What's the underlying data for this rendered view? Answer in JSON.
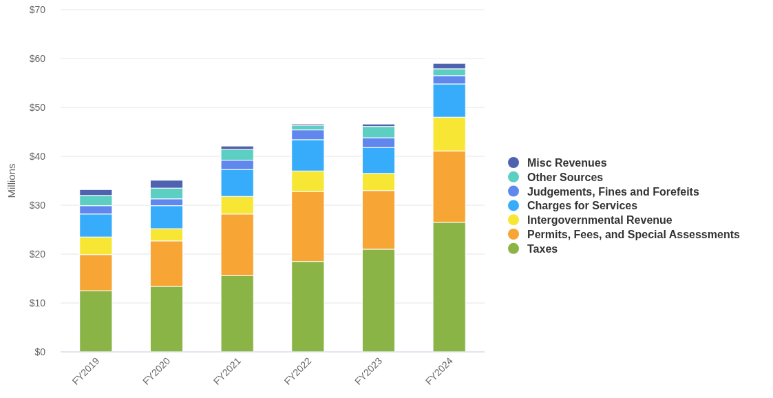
{
  "chart_data": {
    "type": "bar",
    "stacked": true,
    "ylabel": "Millions",
    "categories": [
      "FY2019",
      "FY2020",
      "FY2021",
      "FY2022",
      "FY2023",
      "FY2024"
    ],
    "series": [
      {
        "name": "Taxes",
        "color": "#8bb446",
        "values": [
          12.5,
          13.4,
          15.6,
          18.5,
          21.0,
          26.5
        ]
      },
      {
        "name": "Permits, Fees, and Special Assessments",
        "color": "#f7a534",
        "values": [
          7.4,
          9.3,
          12.6,
          14.3,
          12.0,
          14.6
        ]
      },
      {
        "name": "Intergovernmental Revenue",
        "color": "#f7e634",
        "values": [
          3.6,
          2.5,
          3.6,
          4.2,
          3.5,
          6.9
        ]
      },
      {
        "name": "Charges for Services",
        "color": "#36acfa",
        "values": [
          4.7,
          4.7,
          5.5,
          6.4,
          5.3,
          6.8
        ]
      },
      {
        "name": "Judgements, Fines and Forefeits",
        "color": "#5f87ee",
        "values": [
          1.7,
          1.4,
          1.9,
          2.0,
          2.0,
          1.7
        ]
      },
      {
        "name": "Other Sources",
        "color": "#5ccec2",
        "values": [
          2.1,
          2.2,
          2.2,
          0.9,
          2.3,
          1.4
        ]
      },
      {
        "name": "Misc Revenues",
        "color": "#4f62b0",
        "values": [
          1.2,
          1.6,
          0.7,
          0.3,
          0.5,
          1.1
        ]
      }
    ],
    "ylim": [
      0,
      70
    ],
    "yticks": [
      {
        "value": 0,
        "label": "$0"
      },
      {
        "value": 10,
        "label": "$10"
      },
      {
        "value": 20,
        "label": "$20"
      },
      {
        "value": 30,
        "label": "$30"
      },
      {
        "value": 40,
        "label": "$40"
      },
      {
        "value": 50,
        "label": "$50"
      },
      {
        "value": 60,
        "label": "$60"
      },
      {
        "value": 70,
        "label": "$70"
      }
    ],
    "grid": "y",
    "legend": "right"
  }
}
